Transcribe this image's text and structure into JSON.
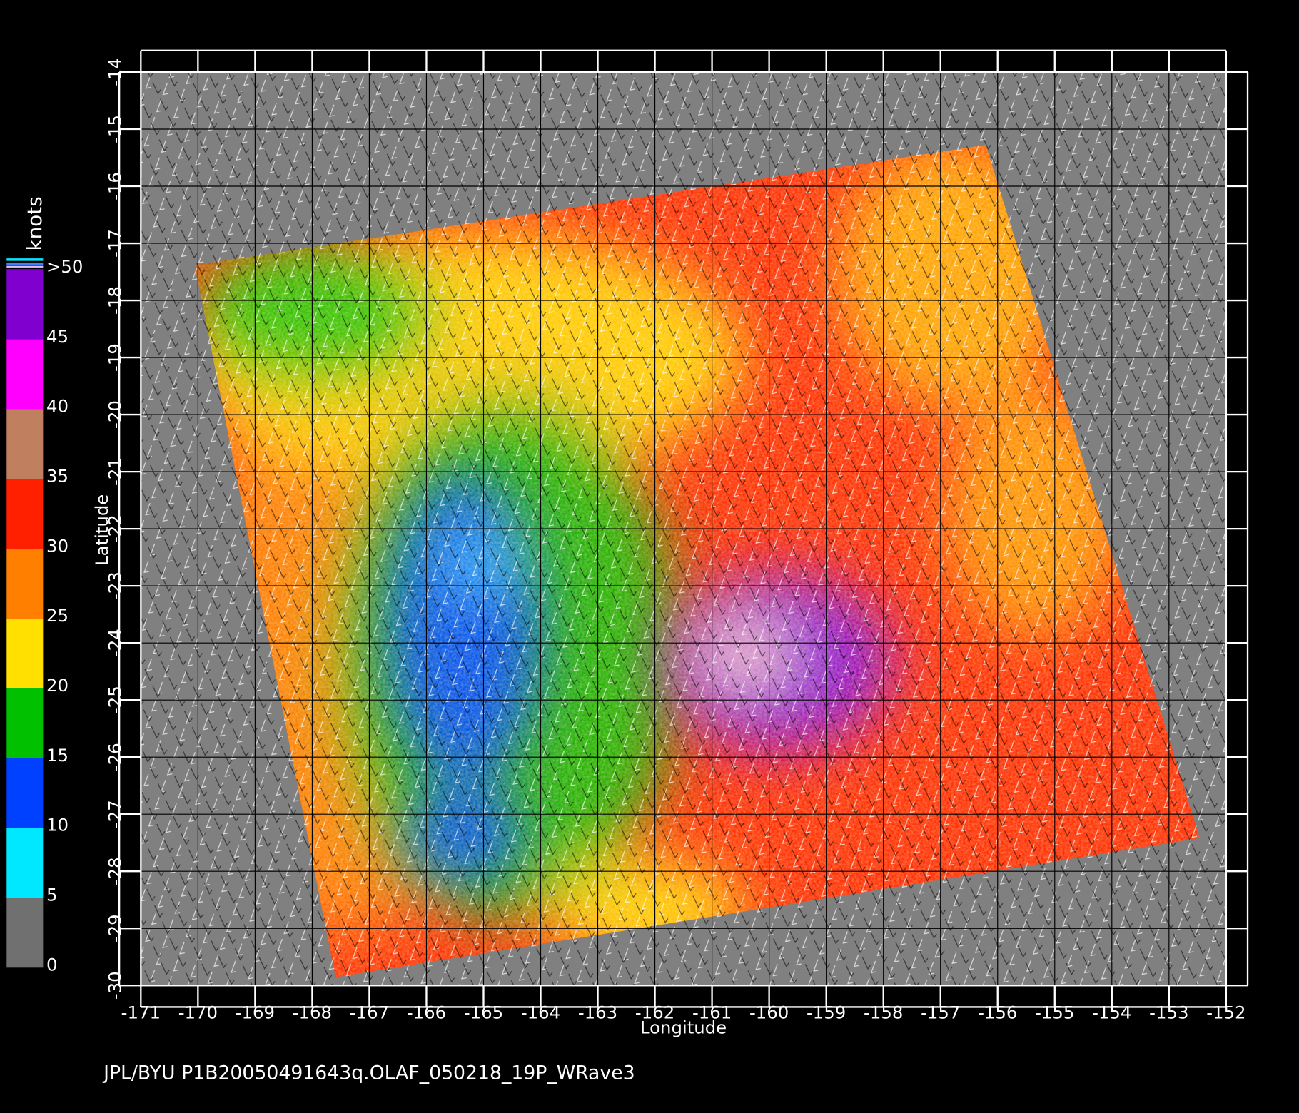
{
  "chart_data": {
    "type": "map",
    "xlabel": "Longitude",
    "ylabel": "Latitude",
    "xlim": [
      -171,
      -152
    ],
    "ylim": [
      -30,
      -14
    ],
    "xticks": [
      -171,
      -170,
      -169,
      -168,
      -167,
      -166,
      -165,
      -164,
      -163,
      -162,
      -161,
      -160,
      -159,
      -158,
      -157,
      -156,
      -155,
      -154,
      -153,
      -152
    ],
    "yticks": [
      -14,
      -15,
      -16,
      -17,
      -18,
      -19,
      -20,
      -21,
      -22,
      -23,
      -24,
      -25,
      -26,
      -27,
      -28,
      -29,
      -30
    ],
    "grid": true,
    "colorbar": {
      "title": "knots",
      "lim": [
        0,
        50
      ],
      "ticks": [
        {
          "value": 50,
          "label": ">50"
        },
        45,
        40,
        35,
        30,
        25,
        20,
        15,
        10,
        5,
        0
      ],
      "colors": [
        "#707070",
        "#00e8ff",
        "#0040ff",
        "#00c000",
        "#ffe000",
        "#ff8000",
        "#ff2000",
        "#c08060",
        "#ff00ff",
        "#8000d0"
      ]
    },
    "footer": "JPL/BYU  P1B20050491643q.OLAF_050218_19P_WRave3"
  }
}
